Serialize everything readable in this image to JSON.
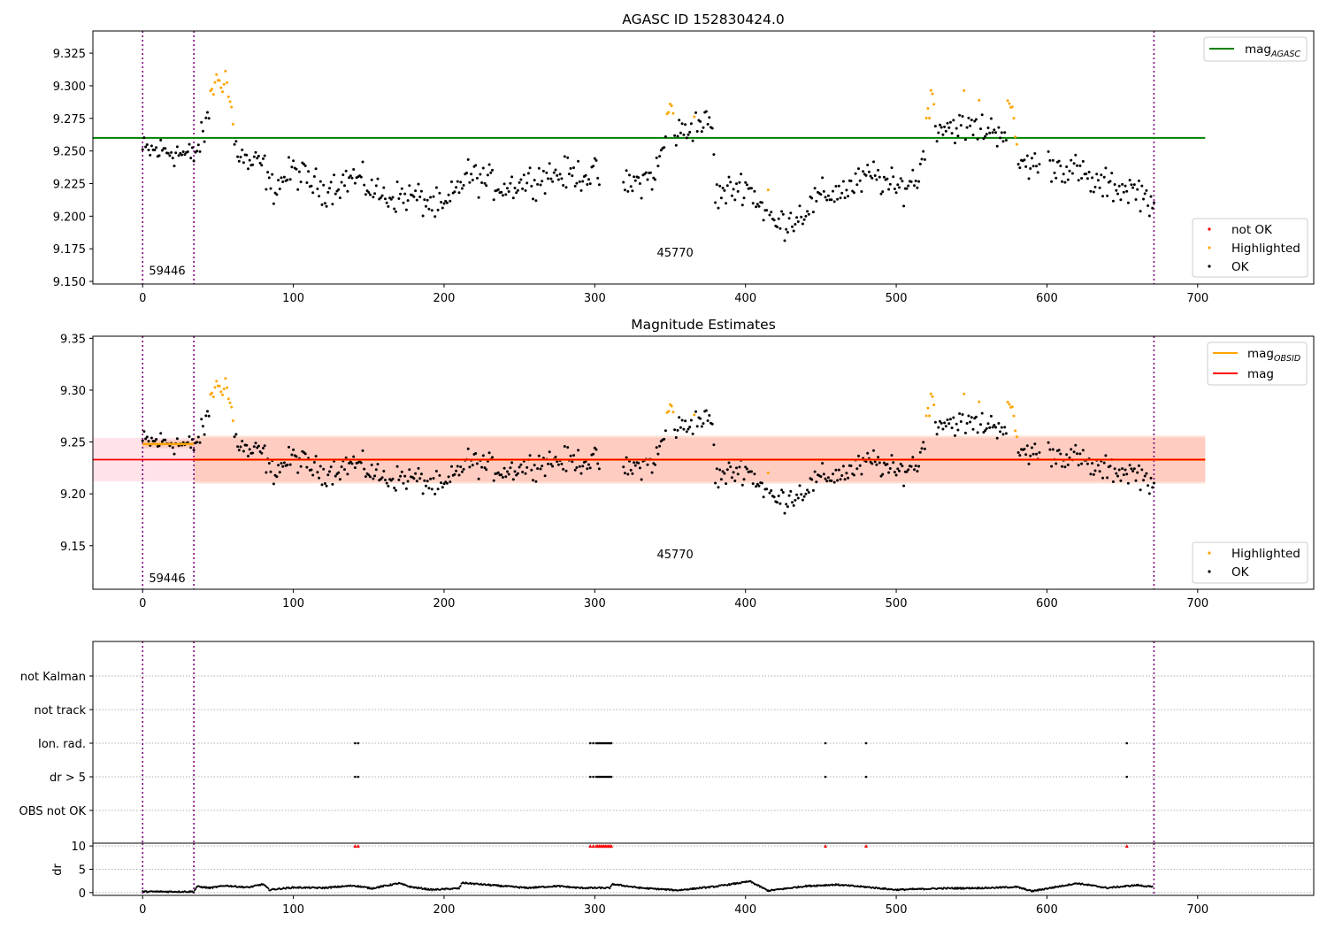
{
  "colors": {
    "ok": "#000000",
    "highlighted": "#ffa500",
    "not_ok": "#ff0000",
    "mag_agasc_line": "#008000",
    "mag_obsid_line": "#ffa500",
    "mag_line": "#ff0000",
    "mag_band": "#ffc0cb",
    "mag_obsid_band": "#ffa07a",
    "obsid_boundary": "#800080",
    "flag_marker": "#000000",
    "dr_limit_marker": "#ff0000"
  },
  "chart_data": [
    {
      "id": "agasc",
      "type": "scatter",
      "title": "AGASC ID 152830424.0",
      "xlim": [
        -33,
        777
      ],
      "ylim": [
        9.148,
        9.342
      ],
      "xticks": [
        0,
        100,
        200,
        300,
        400,
        500,
        600,
        700
      ],
      "yticks": [
        9.15,
        9.175,
        9.2,
        9.225,
        9.25,
        9.275,
        9.3,
        9.325
      ],
      "ytick_labels": [
        "9.150",
        "9.175",
        "9.200",
        "9.225",
        "9.250",
        "9.275",
        "9.300",
        "9.325"
      ],
      "hlines": [
        {
          "name": "mag_AGASC",
          "y": 9.26,
          "x_range": [
            -33,
            705
          ]
        }
      ],
      "obsid_boundaries": [
        0,
        34,
        671
      ],
      "obsid_labels": [
        {
          "text": "59446",
          "x": 3,
          "y": 9.155
        },
        {
          "text": "45770",
          "x": 340,
          "y": 9.169
        }
      ],
      "legends": [
        {
          "position": "upper-right",
          "entries": [
            {
              "label": "mag",
              "sub": "AGASC",
              "kind": "line"
            }
          ]
        },
        {
          "position": "lower-right",
          "entries": [
            {
              "label": "not OK",
              "kind": "dot",
              "key": "not_ok"
            },
            {
              "label": "Highlighted",
              "kind": "dot",
              "key": "highlighted"
            },
            {
              "label": "OK",
              "kind": "dot",
              "key": "ok"
            }
          ]
        }
      ]
    },
    {
      "id": "mag_estimates",
      "type": "scatter",
      "title": "Magnitude Estimates",
      "xlim": [
        -33,
        777
      ],
      "ylim": [
        9.108,
        9.352
      ],
      "xticks": [
        0,
        100,
        200,
        300,
        400,
        500,
        600,
        700
      ],
      "yticks": [
        9.15,
        9.2,
        9.25,
        9.3,
        9.35
      ],
      "ytick_labels": [
        "9.15",
        "9.20",
        "9.25",
        "9.30",
        "9.35"
      ],
      "mag": {
        "value": 9.233,
        "band": [
          9.212,
          9.254
        ],
        "x_range": [
          -33,
          705
        ]
      },
      "mag_obsid": [
        {
          "x_range": [
            0,
            34
          ],
          "value": 9.248,
          "band": [
            9.244,
            9.252
          ]
        },
        {
          "x_range": [
            34,
            705
          ],
          "value": 9.233,
          "band": [
            9.21,
            9.256
          ]
        }
      ],
      "obsid_boundaries": [
        0,
        34,
        671
      ],
      "obsid_labels": [
        {
          "text": "59446",
          "x": 3,
          "y": 9.115
        },
        {
          "text": "45770",
          "x": 340,
          "y": 9.138
        }
      ],
      "legends": [
        {
          "position": "upper-right",
          "entries": [
            {
              "label": "mag",
              "sub": "OBSID",
              "kind": "line",
              "key": "mag_obsid_line"
            },
            {
              "label": "mag",
              "kind": "line",
              "key": "mag_line"
            }
          ]
        },
        {
          "position": "lower-right",
          "entries": [
            {
              "label": "Highlighted",
              "kind": "dot",
              "key": "highlighted"
            },
            {
              "label": "OK",
              "kind": "dot",
              "key": "ok"
            }
          ]
        }
      ]
    },
    {
      "id": "flags",
      "type": "scatter",
      "xlim": [
        -33,
        777
      ],
      "categories": [
        "not Kalman",
        "not track",
        "Ion. rad.",
        "dr > 5",
        "OBS not OK"
      ],
      "obsid_boundaries": [
        0,
        34,
        671
      ],
      "flagged_x": {
        "Ion. rad.": [
          141,
          143,
          297,
          299,
          301,
          302,
          303,
          304,
          305,
          306,
          307,
          308,
          309,
          310,
          311,
          453,
          480,
          653
        ],
        "dr > 5": [
          141,
          143,
          297,
          299,
          301,
          302,
          303,
          304,
          305,
          306,
          307,
          308,
          309,
          310,
          311,
          453,
          480,
          653
        ]
      }
    },
    {
      "id": "dr",
      "type": "scatter",
      "ylabel": "dr",
      "xlim": [
        -33,
        777
      ],
      "ylim": [
        -0.6,
        10.6
      ],
      "xticks": [
        0,
        100,
        200,
        300,
        400,
        500,
        600,
        700
      ],
      "yticks": [
        0,
        5,
        10
      ],
      "ytick_labels": [
        "0",
        "5",
        "10"
      ],
      "obsid_boundaries": [
        0,
        34,
        671
      ],
      "clipped_at": 10,
      "clipped_x": [
        141,
        143,
        297,
        299,
        301,
        302,
        303,
        304,
        305,
        306,
        307,
        308,
        309,
        310,
        311,
        453,
        480,
        653
      ],
      "curve_x_range": [
        0,
        670
      ],
      "curve": [
        [
          0,
          0.2
        ],
        [
          34,
          0.2
        ],
        [
          36,
          1.3
        ],
        [
          45,
          1.0
        ],
        [
          55,
          1.5
        ],
        [
          70,
          1.1
        ],
        [
          80,
          1.8
        ],
        [
          84,
          0.6
        ],
        [
          100,
          1.1
        ],
        [
          120,
          1.0
        ],
        [
          140,
          1.5
        ],
        [
          152,
          0.9
        ],
        [
          170,
          2.0
        ],
        [
          178,
          1.2
        ],
        [
          192,
          0.6
        ],
        [
          210,
          0.9
        ],
        [
          212,
          2.1
        ],
        [
          235,
          1.5
        ],
        [
          255,
          1.0
        ],
        [
          275,
          1.4
        ],
        [
          290,
          1.0
        ],
        [
          310,
          1.0
        ],
        [
          312,
          1.8
        ],
        [
          330,
          1.0
        ],
        [
          355,
          0.5
        ],
        [
          380,
          1.3
        ],
        [
          403,
          2.4
        ],
        [
          415,
          0.4
        ],
        [
          440,
          1.4
        ],
        [
          460,
          1.7
        ],
        [
          480,
          1.2
        ],
        [
          500,
          0.6
        ],
        [
          530,
          0.9
        ],
        [
          560,
          1.0
        ],
        [
          580,
          1.2
        ],
        [
          590,
          0.3
        ],
        [
          620,
          2.0
        ],
        [
          640,
          1.0
        ],
        [
          660,
          1.6
        ],
        [
          670,
          1.2
        ]
      ]
    }
  ]
}
